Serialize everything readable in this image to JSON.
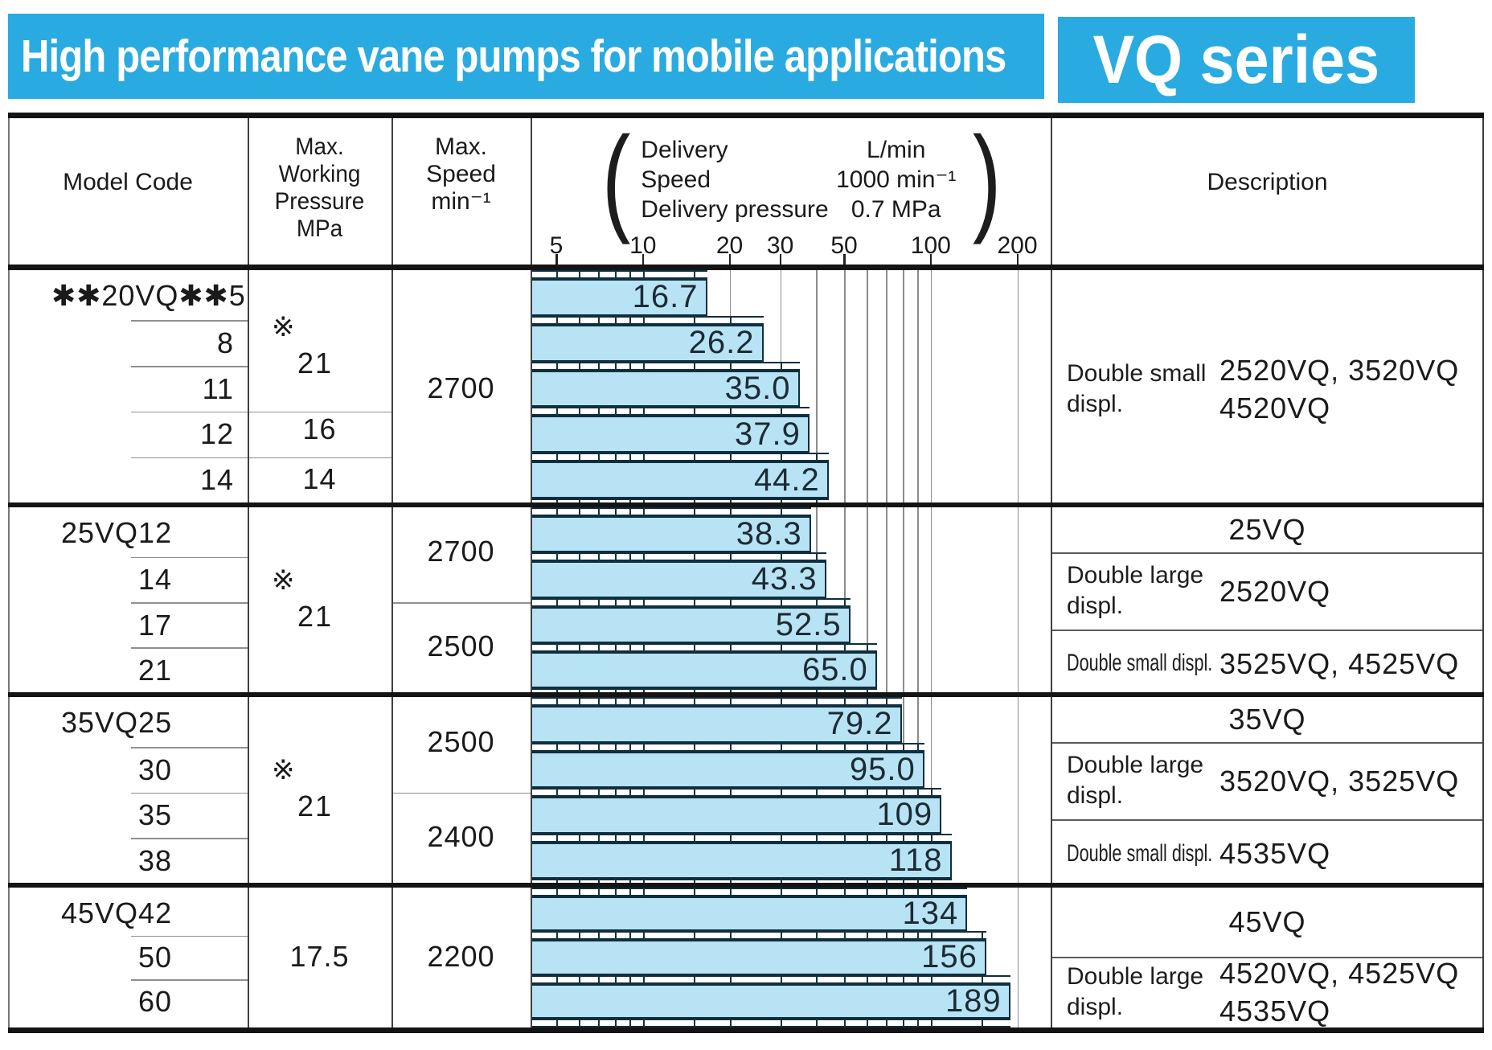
{
  "banner": {
    "title": "High performance vane pumps for mobile applications",
    "series": "VQ series",
    "accent_color": "#29abe2"
  },
  "header": {
    "model_code": "Model Code",
    "pressure_lines": [
      "Max. Working",
      "Pressure",
      "MPa"
    ],
    "speed_lines": [
      "Max.",
      "Speed",
      "min⁻¹"
    ],
    "delivery": {
      "paren_open": "(",
      "paren_close": ")",
      "left": [
        "Delivery",
        "Speed",
        "Delivery pressure"
      ],
      "right": [
        "L/min",
        "1000 min⁻¹",
        "0.7 MPa"
      ]
    },
    "description": "Description"
  },
  "chart_data": {
    "type": "bar",
    "orientation": "horizontal",
    "x_scale": "log",
    "x_range": [
      5,
      200
    ],
    "x_ticks": [
      5,
      10,
      20,
      30,
      50,
      100,
      200
    ],
    "gridlines": [
      20,
      30,
      40,
      50,
      60,
      70,
      80,
      90,
      100,
      200
    ],
    "minor_ticks": [
      5,
      6,
      7,
      8,
      9,
      10,
      15,
      20,
      30,
      40,
      50,
      60,
      70,
      80,
      90,
      100,
      150
    ],
    "unit": "L/min",
    "conditions": {
      "speed": "1000 min⁻¹",
      "delivery_pressure": "0.7 MPa"
    },
    "bar_color": "#b7e3f5",
    "bar_border_color": "#0f2e3e",
    "groups": [
      {
        "categories": [
          "✱✱20VQ✱✱5",
          "8",
          "11",
          "12",
          "14"
        ],
        "values": [
          16.7,
          26.2,
          35.0,
          37.9,
          44.2
        ],
        "labels": [
          "16.7",
          "26.2",
          "35.0",
          "37.9",
          "44.2"
        ]
      },
      {
        "categories": [
          "25VQ12",
          "14",
          "17",
          "21"
        ],
        "values": [
          38.3,
          43.3,
          52.5,
          65.0
        ],
        "labels": [
          "38.3",
          "43.3",
          "52.5",
          "65.0"
        ]
      },
      {
        "categories": [
          "35VQ25",
          "30",
          "35",
          "38"
        ],
        "values": [
          79.2,
          95.0,
          109,
          118
        ],
        "labels": [
          "79.2",
          "95.0",
          "109",
          "118"
        ]
      },
      {
        "categories": [
          "45VQ42",
          "50",
          "60"
        ],
        "values": [
          134,
          156,
          189
        ],
        "labels": [
          "134",
          "156",
          "189"
        ]
      }
    ]
  },
  "sections": [
    {
      "model_main": "✱✱20VQ✱✱5",
      "model_subs": [
        "8",
        "11",
        "12",
        "14"
      ],
      "pressure_cells": [
        {
          "note": "※",
          "value": "21",
          "rows": 3
        },
        {
          "value": "16",
          "rows": 1
        },
        {
          "value": "14",
          "rows": 1
        }
      ],
      "speed_cells": [
        {
          "value": "2700",
          "rows": 5
        }
      ],
      "desc_cells": [
        {
          "type": "pair",
          "label": [
            "Double small",
            "displ."
          ],
          "models": [
            "2520VQ, 3520VQ",
            "4520VQ"
          ]
        }
      ]
    },
    {
      "model_main": "25VQ12",
      "model_subs": [
        "14",
        "17",
        "21"
      ],
      "pressure_cells": [
        {
          "note": "※",
          "value": "21",
          "rows": 4
        }
      ],
      "speed_cells": [
        {
          "value": "2700",
          "rows": 2
        },
        {
          "value": "2500",
          "rows": 2
        }
      ],
      "desc_cells": [
        {
          "type": "center",
          "text": "25VQ"
        },
        {
          "type": "pair",
          "label": [
            "Double large",
            "displ."
          ],
          "models": [
            "2520VQ"
          ]
        },
        {
          "type": "pair",
          "compact": true,
          "label": [
            "Double small displ."
          ],
          "models": [
            "3525VQ, 4525VQ"
          ]
        }
      ]
    },
    {
      "model_main": "35VQ25",
      "model_subs": [
        "30",
        "35",
        "38"
      ],
      "pressure_cells": [
        {
          "note": "※",
          "value": "21",
          "rows": 4
        }
      ],
      "speed_cells": [
        {
          "value": "2500",
          "rows": 2
        },
        {
          "value": "2400",
          "rows": 2
        }
      ],
      "desc_cells": [
        {
          "type": "center",
          "text": "35VQ"
        },
        {
          "type": "pair",
          "label": [
            "Double large",
            "displ."
          ],
          "models": [
            "3520VQ, 3525VQ"
          ]
        },
        {
          "type": "pair",
          "compact": true,
          "label": [
            "Double small displ."
          ],
          "models": [
            "4535VQ"
          ]
        }
      ]
    },
    {
      "model_main": "45VQ42",
      "model_subs": [
        "50",
        "60"
      ],
      "pressure_cells": [
        {
          "value": "17.5",
          "rows": 3
        }
      ],
      "speed_cells": [
        {
          "value": "2200",
          "rows": 3
        }
      ],
      "desc_cells": [
        {
          "type": "center",
          "text": "45VQ"
        },
        {
          "type": "pair",
          "label": [
            "Double large",
            "displ."
          ],
          "models": [
            "4520VQ, 4525VQ",
            "4535VQ"
          ]
        }
      ]
    }
  ]
}
